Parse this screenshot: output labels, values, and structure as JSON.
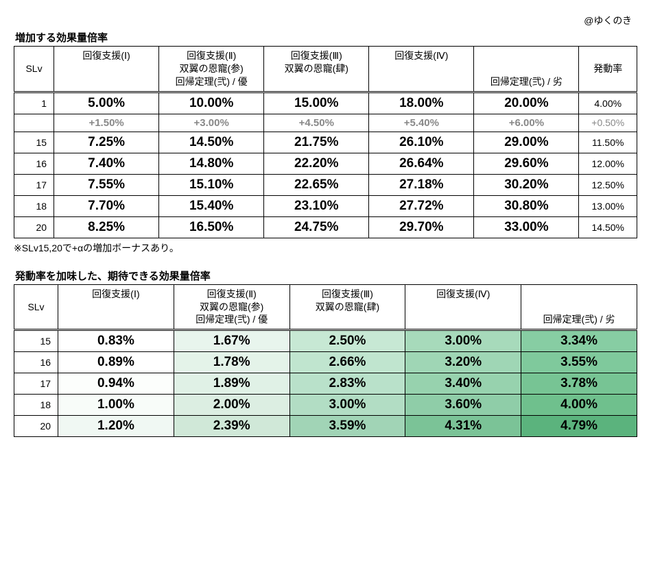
{
  "credit": "@ゆくのき",
  "table1": {
    "title": "増加する効果量倍率",
    "headers": {
      "slv": "SLv",
      "cols": [
        [
          "回復支援(Ⅰ)"
        ],
        [
          "回復支援(Ⅱ)",
          "双翼の恩寵(参)",
          "回帰定理(弐) / 優"
        ],
        [
          "回復支援(Ⅲ)",
          "双翼の恩寵(肆)"
        ],
        [
          "回復支援(Ⅳ)"
        ],
        [
          "回帰定理(弐) / 劣"
        ]
      ],
      "rate": "発動率"
    },
    "row_base": {
      "slv": "1",
      "vals": [
        "5.00%",
        "10.00%",
        "15.00%",
        "18.00%",
        "20.00%"
      ],
      "rate": "4.00%"
    },
    "row_inc": {
      "slv": "",
      "vals": [
        "+1.50%",
        "+3.00%",
        "+4.50%",
        "+5.40%",
        "+6.00%"
      ],
      "rate": "+0.50%"
    },
    "rows": [
      {
        "slv": "15",
        "vals": [
          "7.25%",
          "14.50%",
          "21.75%",
          "26.10%",
          "29.00%"
        ],
        "rate": "11.50%"
      },
      {
        "slv": "16",
        "vals": [
          "7.40%",
          "14.80%",
          "22.20%",
          "26.64%",
          "29.60%"
        ],
        "rate": "12.00%"
      },
      {
        "slv": "17",
        "vals": [
          "7.55%",
          "15.10%",
          "22.65%",
          "27.18%",
          "30.20%"
        ],
        "rate": "12.50%"
      },
      {
        "slv": "18",
        "vals": [
          "7.70%",
          "15.40%",
          "23.10%",
          "27.72%",
          "30.80%"
        ],
        "rate": "13.00%"
      },
      {
        "slv": "20",
        "vals": [
          "8.25%",
          "16.50%",
          "24.75%",
          "29.70%",
          "33.00%"
        ],
        "rate": "14.50%"
      }
    ],
    "footnote": "※SLv15,20で+αの増加ボーナスあり。"
  },
  "table2": {
    "title": "発動率を加味した、期待できる効果量倍率",
    "headers": {
      "slv": "SLv",
      "cols": [
        [
          "回復支援(Ⅰ)"
        ],
        [
          "回復支援(Ⅱ)",
          "双翼の恩寵(参)",
          "回帰定理(弐) / 優"
        ],
        [
          "回復支援(Ⅲ)",
          "双翼の恩寵(肆)"
        ],
        [
          "回復支援(Ⅳ)"
        ],
        [
          "回帰定理(弐) / 劣"
        ]
      ]
    },
    "rows": [
      {
        "slv": "15",
        "vals": [
          "0.83%",
          "1.67%",
          "2.50%",
          "3.00%",
          "3.34%"
        ]
      },
      {
        "slv": "16",
        "vals": [
          "0.89%",
          "1.78%",
          "2.66%",
          "3.20%",
          "3.55%"
        ]
      },
      {
        "slv": "17",
        "vals": [
          "0.94%",
          "1.89%",
          "2.83%",
          "3.40%",
          "3.78%"
        ]
      },
      {
        "slv": "18",
        "vals": [
          "1.00%",
          "2.00%",
          "3.00%",
          "3.60%",
          "4.00%"
        ]
      },
      {
        "slv": "20",
        "vals": [
          "1.20%",
          "2.39%",
          "3.59%",
          "4.31%",
          "4.79%"
        ]
      }
    ],
    "cell_colors": [
      [
        "#ffffff",
        "#e8f5ed",
        "#c7e8d4",
        "#a7dabb",
        "#87cda3"
      ],
      [
        "#ffffff",
        "#e4f3e9",
        "#c0e5cf",
        "#9fd6b5",
        "#7fc99c"
      ],
      [
        "#fcfefc",
        "#e0f1e6",
        "#b9e1ca",
        "#97d2ae",
        "#77c494"
      ],
      [
        "#f8fcf9",
        "#dceee2",
        "#b2ddc4",
        "#8fcda8",
        "#6fc08d"
      ],
      [
        "#f0f8f3",
        "#d0e8d8",
        "#a1d4b6",
        "#7bc397",
        "#5bb37d"
      ]
    ]
  }
}
